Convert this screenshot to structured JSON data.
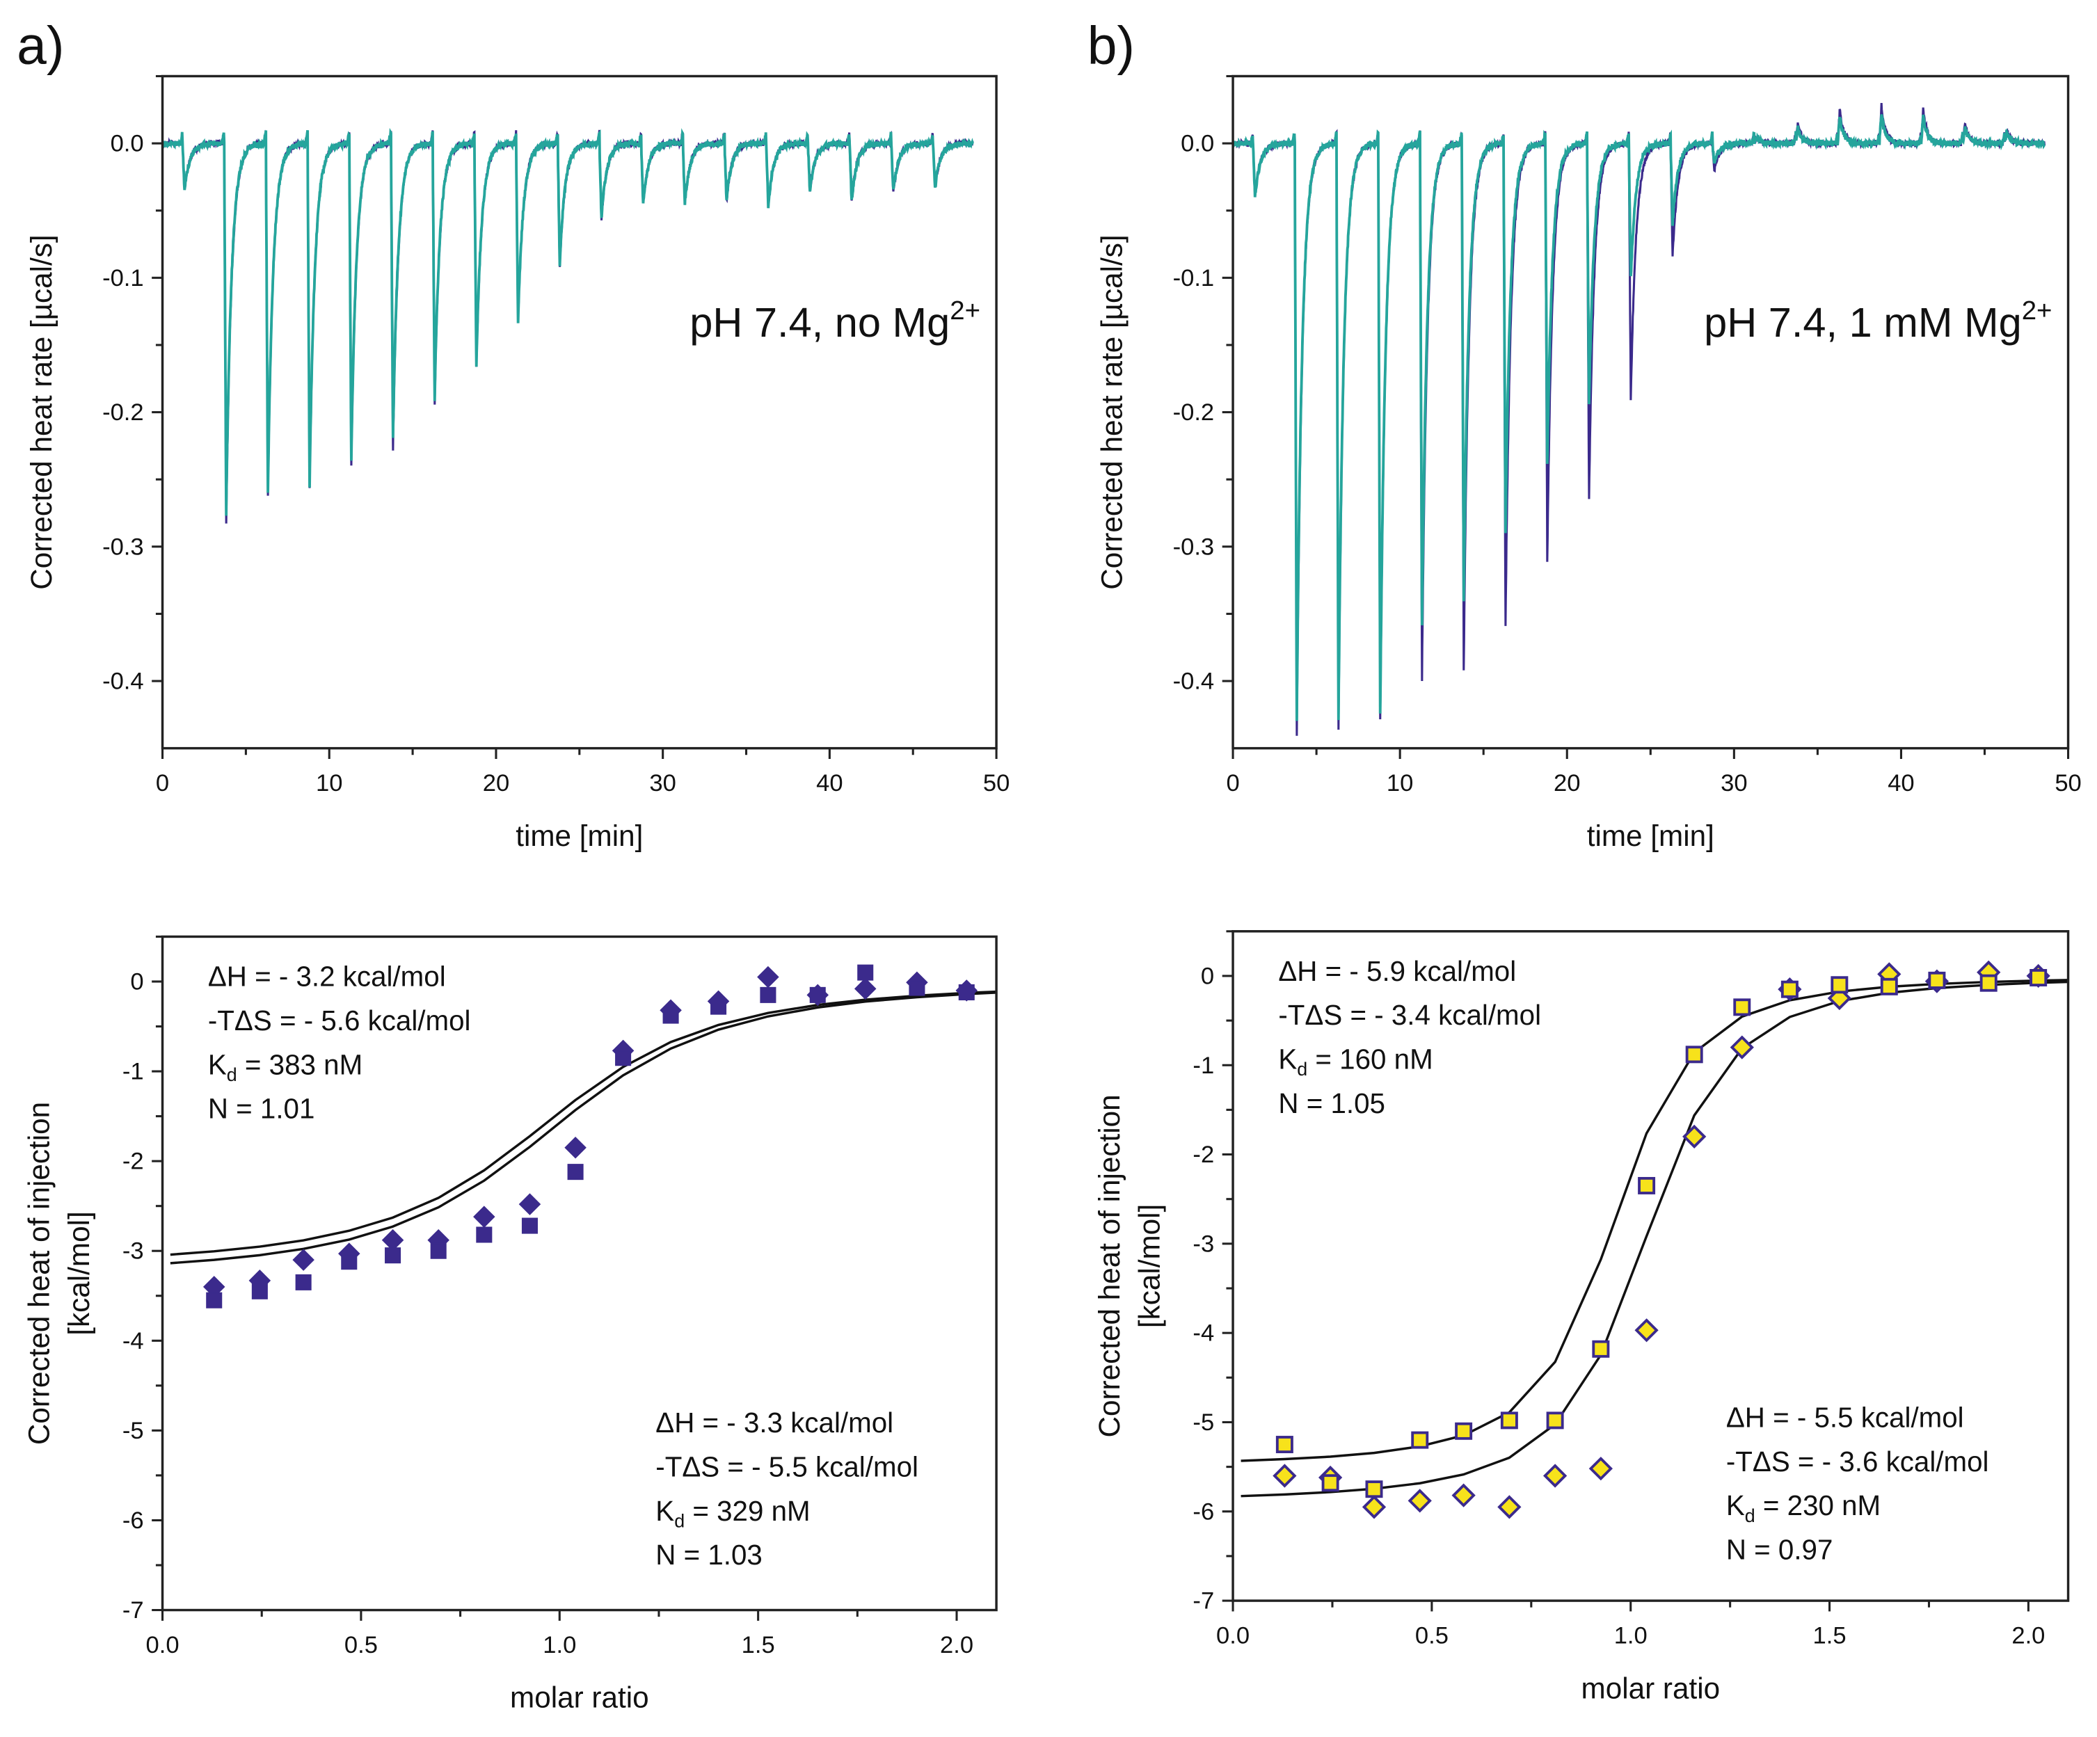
{
  "panel_labels": [
    "a)",
    "b)"
  ],
  "chart_data": [
    {
      "type": "line",
      "panel": "a",
      "xlabel": "time [min]",
      "ylabel": "Corrected heat rate [µcal/s]",
      "xlim": [
        0,
        50
      ],
      "ylim": [
        -0.45,
        0.05
      ],
      "xticks": [
        "0",
        "10",
        "20",
        "30",
        "40",
        "50"
      ],
      "yticks": [
        "0.0",
        "-0.1",
        "-0.2",
        "-0.3",
        "-0.4"
      ],
      "condition": {
        "text": "pH 7.4, no Mg",
        "sup": "2+"
      },
      "injection_times": [
        1.2,
        3.7,
        6.2,
        8.7,
        11.2,
        13.7,
        16.2,
        18.7,
        21.2,
        23.7,
        26.2,
        28.7,
        31.2,
        33.7,
        36.2,
        38.7,
        41.2,
        43.7,
        46.2
      ],
      "series": [
        {
          "color": "#3b2a8c",
          "peak_minima": [
            -0.035,
            -0.283,
            -0.26,
            -0.255,
            -0.24,
            -0.227,
            -0.193,
            -0.168,
            -0.133,
            -0.093,
            -0.056,
            -0.045,
            -0.045,
            -0.043,
            -0.047,
            -0.036,
            -0.043,
            -0.036,
            -0.033
          ]
        },
        {
          "color": "#25a59c",
          "peak_minima": [
            -0.035,
            -0.275,
            -0.26,
            -0.255,
            -0.235,
            -0.22,
            -0.19,
            -0.166,
            -0.133,
            -0.09,
            -0.056,
            -0.045,
            -0.045,
            -0.043,
            -0.047,
            -0.036,
            -0.043,
            -0.036,
            -0.033
          ]
        }
      ]
    },
    {
      "type": "line",
      "panel": "b",
      "xlabel": "time [min]",
      "ylabel": "Corrected heat rate [µcal/s]",
      "xlim": [
        0,
        50
      ],
      "ylim": [
        -0.45,
        0.05
      ],
      "xticks": [
        "0",
        "10",
        "20",
        "30",
        "40",
        "50"
      ],
      "yticks": [
        "0.0",
        "-0.1",
        "-0.2",
        "-0.3",
        "-0.4"
      ],
      "condition": {
        "text": "pH 7.4, 1 mM Mg",
        "sup": "2+"
      },
      "injection_times": [
        1.2,
        3.7,
        6.2,
        8.7,
        11.2,
        13.7,
        16.2,
        18.7,
        21.2,
        23.7,
        26.2,
        28.7,
        31.2,
        33.7,
        36.2,
        38.7,
        41.2,
        43.7,
        46.2
      ],
      "series": [
        {
          "color": "#3b2a8c",
          "peak_minima": [
            -0.04,
            -0.44,
            -0.435,
            -0.43,
            -0.4,
            -0.39,
            -0.36,
            -0.31,
            -0.265,
            -0.19,
            -0.085,
            -0.02,
            0.005,
            0.015,
            0.025,
            0.028,
            0.025,
            0.015,
            0.01
          ]
        },
        {
          "color": "#25a59c",
          "peak_minima": [
            -0.04,
            -0.43,
            -0.43,
            -0.425,
            -0.36,
            -0.34,
            -0.29,
            -0.24,
            -0.195,
            -0.1,
            -0.06,
            -0.015,
            0.005,
            0.012,
            0.02,
            0.022,
            0.02,
            0.012,
            0.008
          ]
        }
      ]
    },
    {
      "type": "scatter",
      "panel": "a",
      "xlabel": "molar ratio",
      "ylabel": [
        "Corrected heat of injection",
        "[kcal/mol]"
      ],
      "xlim": [
        0,
        2.1
      ],
      "ylim": [
        -7,
        0.5
      ],
      "xticks": [
        "0.0",
        "0.5",
        "1.0",
        "1.5",
        "2.0"
      ],
      "yticks": [
        "0",
        "-1",
        "-2",
        "-3",
        "-4",
        "-5",
        "-6",
        "-7"
      ],
      "x": [
        0.13,
        0.245,
        0.355,
        0.47,
        0.58,
        0.695,
        0.81,
        0.925,
        1.04,
        1.16,
        1.28,
        1.4,
        1.525,
        1.65,
        1.77,
        1.9,
        2.025
      ],
      "series": [
        {
          "marker": "diamond",
          "fill": "#3b2a8c",
          "stroke": "#3b2a8c",
          "y": [
            -3.4,
            -3.33,
            -3.1,
            -3.03,
            -2.88,
            -2.88,
            -2.62,
            -2.48,
            -1.85,
            -0.77,
            -0.32,
            -0.22,
            0.05,
            -0.15,
            -0.08,
            -0.01,
            -0.1
          ],
          "fit": {
            "dH": "ΔH = - 3.2 kcal/mol",
            "TdS": "-TΔS = - 5.6 kcal/mol",
            "kd_symbol": "K",
            "kd_sub": "d",
            "kd_value": " = 383 nM",
            "n_label": "N = 1.01",
            "dH_value": -3.2,
            "N": 1.01
          }
        },
        {
          "marker": "square",
          "fill": "#3b2a8c",
          "stroke": "#3b2a8c",
          "y": [
            -3.55,
            -3.45,
            -3.35,
            -3.12,
            -3.05,
            -3.0,
            -2.82,
            -2.72,
            -2.12,
            -0.85,
            -0.38,
            -0.28,
            -0.15,
            -0.15,
            0.1,
            -0.07,
            -0.12
          ],
          "fit": {
            "dH": "ΔH = - 3.3 kcal/mol",
            "TdS": "-TΔS = - 5.5 kcal/mol",
            "kd_symbol": "K",
            "kd_sub": "d",
            "kd_value": " = 329 nM",
            "n_label": "N = 1.03",
            "dH_value": -3.3,
            "N": 1.03
          }
        }
      ]
    },
    {
      "type": "scatter",
      "panel": "b",
      "xlabel": "molar ratio",
      "ylabel": [
        "Corrected heat of injection",
        "[kcal/mol]"
      ],
      "xlim": [
        0,
        2.1
      ],
      "ylim": [
        -7,
        0.5
      ],
      "xticks": [
        "0.0",
        "0.5",
        "1.0",
        "1.5",
        "2.0"
      ],
      "yticks": [
        "0",
        "-1",
        "-2",
        "-3",
        "-4",
        "-5",
        "-6",
        "-7"
      ],
      "x": [
        0.13,
        0.245,
        0.355,
        0.47,
        0.58,
        0.695,
        0.81,
        0.925,
        1.04,
        1.16,
        1.28,
        1.4,
        1.525,
        1.65,
        1.77,
        1.9,
        2.025
      ],
      "series": [
        {
          "marker": "diamond",
          "fill": "#f7e21b",
          "stroke": "#3b2a8c",
          "y": [
            -5.6,
            -5.62,
            -5.95,
            -5.88,
            -5.82,
            -5.95,
            -5.6,
            -5.52,
            -3.97,
            -1.8,
            -0.8,
            -0.15,
            -0.25,
            0.02,
            -0.06,
            0.04,
            0.0
          ],
          "fit": {
            "dH": "ΔH = - 5.9 kcal/mol",
            "TdS": "-TΔS = - 3.4 kcal/mol",
            "kd_symbol": "K",
            "kd_sub": "d",
            "kd_value": " = 160 nM",
            "n_label": "N = 1.05",
            "dH_value": -5.9,
            "N": 1.05
          }
        },
        {
          "marker": "square",
          "fill": "#f7e21b",
          "stroke": "#3b2a8c",
          "y": [
            -5.25,
            -5.68,
            -5.75,
            -5.2,
            -5.1,
            -4.98,
            -4.98,
            -4.18,
            -2.35,
            -0.88,
            -0.35,
            -0.15,
            -0.1,
            -0.12,
            -0.05,
            -0.08,
            -0.02
          ],
          "fit": {
            "dH": "ΔH = - 5.5 kcal/mol",
            "TdS": "-TΔS = - 3.6 kcal/mol",
            "kd_symbol": "K",
            "kd_sub": "d",
            "kd_value": " = 230 nM",
            "n_label": "N = 0.97",
            "dH_value": -5.5,
            "N": 0.97
          }
        }
      ]
    }
  ]
}
